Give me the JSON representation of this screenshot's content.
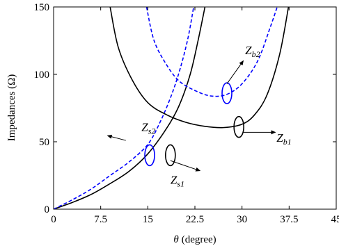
{
  "chart_data": {
    "type": "line",
    "xlabel_symbol": "θ",
    "xlabel_unit": "(degree)",
    "ylabel": "Impedances (Ω)",
    "xlim": [
      0,
      45
    ],
    "ylim": [
      0,
      150
    ],
    "xticks": [
      "0",
      "7.5",
      "15",
      "22.5",
      "30",
      "37.5",
      "45"
    ],
    "yticks": [
      "0",
      "50",
      "100",
      "150"
    ],
    "grid": false,
    "series": [
      {
        "name": "Zs1",
        "color": "#000000",
        "dash": "solid",
        "x": [
          0,
          3,
          6,
          9,
          12,
          15,
          18,
          20,
          21.75,
          23,
          24.1
        ],
        "y": [
          0,
          5,
          11,
          19,
          28,
          41,
          60,
          77,
          100,
          125,
          150
        ]
      },
      {
        "name": "Zs2",
        "color": "#0000ff",
        "dash": "dashed",
        "x": [
          0,
          3,
          6,
          9,
          12,
          15,
          17,
          18.8,
          20.2,
          21.4,
          22.3
        ],
        "y": [
          0,
          7,
          15,
          25,
          35,
          48,
          65,
          85,
          105,
          127,
          150
        ]
      },
      {
        "name": "Zb1",
        "color": "#000000",
        "dash": "solid",
        "x": [
          9,
          10.3,
          12.5,
          15,
          18,
          21,
          24,
          27,
          30,
          32,
          34,
          36,
          37.4
        ],
        "y": [
          150,
          120,
          96,
          79,
          70,
          64.5,
          61.5,
          60.5,
          63,
          70,
          85,
          115,
          150
        ]
      },
      {
        "name": "Zb2",
        "color": "#0000ff",
        "dash": "dashed",
        "x": [
          14.8,
          16,
          18,
          20,
          22.5,
          25,
          27.5,
          30,
          32.5,
          34.5,
          35.6
        ],
        "y": [
          150,
          125,
          107,
          95,
          88,
          84,
          85,
          93,
          110,
          135,
          150
        ]
      }
    ],
    "annotations": [
      {
        "text": "Z",
        "sub": "s2",
        "x": 14,
        "y": 61,
        "ellipse": {
          "x": 15.3,
          "y": 40,
          "color": "#0000ff"
        },
        "arrow_from": [
          11.5,
          51
        ],
        "arrow_to": [
          8.6,
          54.5
        ]
      },
      {
        "text": "Z",
        "sub": "s1",
        "x": 18.6,
        "y": 22,
        "ellipse": {
          "x": 18.6,
          "y": 40,
          "color": "#000000"
        },
        "arrow_from": [
          18.6,
          36
        ],
        "arrow_to": [
          23.3,
          28.5
        ]
      },
      {
        "text": "Z",
        "sub": "b2",
        "x": 30.5,
        "y": 118,
        "ellipse": {
          "x": 27.6,
          "y": 86,
          "color": "#0000ff"
        },
        "arrow_from": [
          27.6,
          93
        ],
        "arrow_to": [
          30.2,
          110
        ]
      },
      {
        "text": "Z",
        "sub": "b1",
        "x": 35.5,
        "y": 53,
        "ellipse": {
          "x": 29.5,
          "y": 61,
          "color": "#000000"
        },
        "arrow_from": [
          30.2,
          57
        ],
        "arrow_to": [
          35.3,
          57
        ]
      }
    ]
  }
}
